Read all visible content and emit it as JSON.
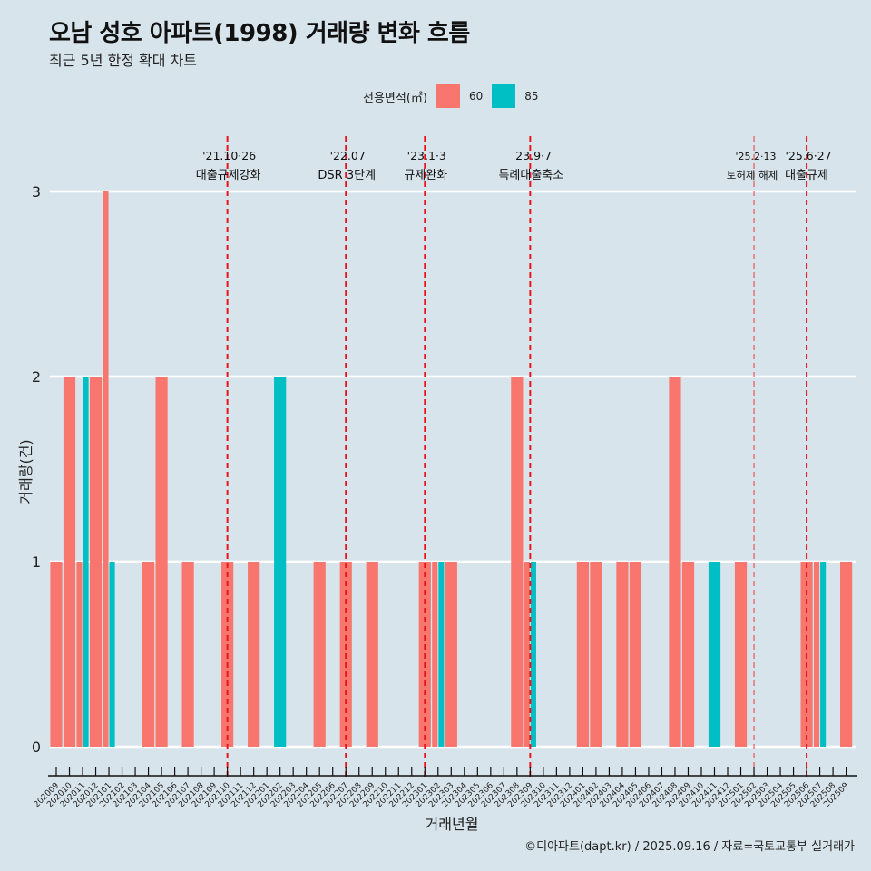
{
  "header": {
    "title": "오남 성호 아파트(1998) 거래량 변화 흐름",
    "subtitle": "최근 5년 한정 확대 차트"
  },
  "legend": {
    "title": "전용면적(㎡)",
    "items": [
      {
        "label": "60",
        "color": "#f8766d"
      },
      {
        "label": "85",
        "color": "#00bfc4"
      }
    ]
  },
  "caption": "©디아파트(dapt.kr) / 2025.09.16 / 자료=국토교통부 실거래가",
  "chart_data": {
    "type": "bar",
    "title": "오남 성호 아파트(1998) 거래량 변화 흐름",
    "subtitle": "최근 5년 한정 확대 차트",
    "xlabel": "거래년월",
    "ylabel": "거래량(건)",
    "ylim": [
      0,
      3
    ],
    "yticks": [
      0,
      1,
      2,
      3
    ],
    "grid": true,
    "legend_position": "top",
    "categories": [
      "202009",
      "202010",
      "202011",
      "202012",
      "202101",
      "202102",
      "202103",
      "202104",
      "202105",
      "202106",
      "202107",
      "202108",
      "202109",
      "202110",
      "202111",
      "202112",
      "202201",
      "202202",
      "202203",
      "202204",
      "202205",
      "202206",
      "202207",
      "202208",
      "202209",
      "202210",
      "202211",
      "202212",
      "202301",
      "202302",
      "202303",
      "202304",
      "202305",
      "202306",
      "202307",
      "202308",
      "202309",
      "202310",
      "202311",
      "202312",
      "202401",
      "202402",
      "202403",
      "202404",
      "202405",
      "202406",
      "202407",
      "202408",
      "202409",
      "202410",
      "202411",
      "202412",
      "202501",
      "202502",
      "202503",
      "202504",
      "202505",
      "202506",
      "202507",
      "202508",
      "202509"
    ],
    "series": [
      {
        "name": "60",
        "color": "#f8766d",
        "values": [
          1,
          2,
          1,
          2,
          3,
          0,
          0,
          1,
          2,
          0,
          1,
          0,
          0,
          1,
          0,
          1,
          0,
          0,
          0,
          0,
          1,
          0,
          1,
          0,
          1,
          0,
          0,
          0,
          1,
          1,
          1,
          0,
          0,
          0,
          0,
          2,
          1,
          0,
          0,
          0,
          1,
          1,
          0,
          1,
          1,
          0,
          0,
          2,
          1,
          0,
          0,
          0,
          1,
          0,
          0,
          0,
          0,
          1,
          1,
          0,
          1
        ]
      },
      {
        "name": "85",
        "color": "#00bfc4",
        "values": [
          0,
          0,
          2,
          0,
          1,
          0,
          0,
          0,
          0,
          0,
          0,
          0,
          0,
          0,
          0,
          0,
          0,
          2,
          0,
          0,
          0,
          0,
          0,
          0,
          0,
          0,
          0,
          0,
          0,
          1,
          0,
          0,
          0,
          0,
          0,
          0,
          1,
          0,
          0,
          0,
          0,
          0,
          0,
          0,
          0,
          0,
          0,
          0,
          0,
          0,
          1,
          0,
          0,
          0,
          0,
          0,
          0,
          0,
          1,
          0,
          0
        ]
      }
    ],
    "annotations": [
      {
        "month": "202110",
        "date": "'21.10·26",
        "label": "대출규제강화",
        "style": "bold"
      },
      {
        "month": "202207",
        "date": "'22.07",
        "label": "DSR 3단계",
        "style": "bold"
      },
      {
        "month": "202301",
        "date": "'23.1·3",
        "label": "규제완화",
        "style": "bold"
      },
      {
        "month": "202309",
        "date": "'23.9·7",
        "label": "특례대출축소",
        "style": "bold"
      },
      {
        "month": "202502",
        "date": "'25.2·13",
        "label": "토허제 해제",
        "style": "light"
      },
      {
        "month": "202506",
        "date": "'25.6·27",
        "label": "대출규제",
        "style": "bold"
      }
    ]
  }
}
